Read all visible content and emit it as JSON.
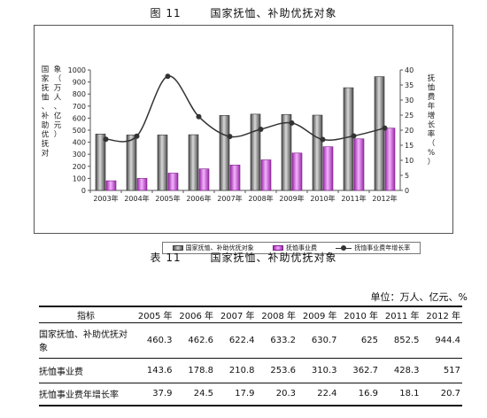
{
  "figure": {
    "label": "图 11",
    "title": "国家抚恤、补助优抚对象"
  },
  "table": {
    "label": "表 11",
    "title": "国家抚恤、补助优抚对象",
    "unit": "单位：万人、亿元、%",
    "header_label": "指标",
    "columns": [
      "2005 年",
      "2006 年",
      "2007 年",
      "2008 年",
      "2009 年",
      "2010 年",
      "2011 年",
      "2012 年"
    ],
    "rows": [
      {
        "label": "国家抚恤、补助优抚对象",
        "values": [
          "460.3",
          "462.6",
          "622.4",
          "633.2",
          "630.7",
          "625",
          "852.5",
          "944.4"
        ]
      },
      {
        "label": "抚恤事业费",
        "values": [
          "143.6",
          "178.8",
          "210.8",
          "253.6",
          "310.3",
          "362.7",
          "428.3",
          "517"
        ]
      },
      {
        "label": "抚恤事业费年增长率",
        "values": [
          "37.9",
          "24.5",
          "17.9",
          "20.3",
          "22.4",
          "16.9",
          "18.1",
          "20.7"
        ]
      }
    ]
  },
  "chart_data": {
    "type": "bar",
    "categories": [
      "2003年",
      "2004年",
      "2005年",
      "2006年",
      "2007年",
      "2008年",
      "2009年",
      "2010年",
      "2011年",
      "2012年"
    ],
    "series": [
      {
        "name": "国家抚恤、补助优抚对象",
        "type": "bar",
        "axis": "left",
        "values": [
          468,
          460,
          460.3,
          462.6,
          622.4,
          633.2,
          630.7,
          625,
          852.5,
          944.4
        ],
        "color": "#9a9a9a"
      },
      {
        "name": "抚恤事业费",
        "type": "bar",
        "axis": "left",
        "values": [
          80,
          100,
          143.6,
          178.8,
          210.8,
          253.6,
          310.3,
          362.7,
          428.3,
          517
        ],
        "color": "#cc55dd"
      },
      {
        "name": "抚恤事业费年增长率",
        "type": "line",
        "axis": "right",
        "values": [
          17,
          18,
          37.9,
          24.5,
          17.9,
          20.3,
          22.4,
          16.9,
          18.1,
          20.7
        ],
        "color": "#333333"
      }
    ],
    "ylabel_left": "国家抚恤、补助优抚对象（万人、亿元）",
    "ylabel_right": "抚恤费年增长率（%）",
    "ylim_left": [
      0,
      1000
    ],
    "ylim_right": [
      0,
      40
    ],
    "yticks_left": [
      0,
      100,
      200,
      300,
      400,
      500,
      600,
      700,
      800,
      900,
      1000
    ],
    "yticks_right": [
      0,
      5,
      10,
      15,
      20,
      25,
      30,
      35,
      40
    ],
    "grid": false,
    "legend_position": "bottom"
  }
}
